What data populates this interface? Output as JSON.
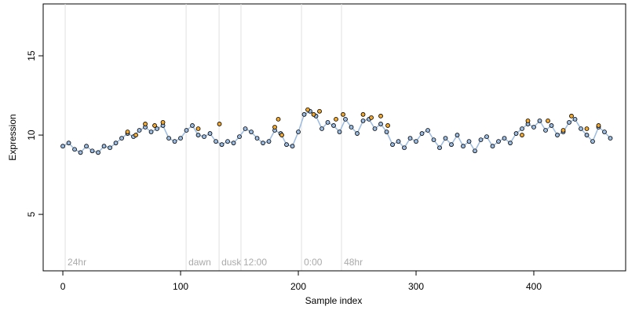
{
  "chart_data": {
    "type": "scatter",
    "xlabel": "Sample index",
    "ylabel": "Expression",
    "xlim": [
      -16.7,
      478
    ],
    "ylim": [
      1.44,
      18.27
    ],
    "xticks": [
      0,
      100,
      200,
      300,
      400
    ],
    "yticks": [
      5,
      10,
      15
    ],
    "annotations": [
      {
        "x": 2,
        "text": "24hr"
      },
      {
        "x": 104.7,
        "text": "dawn"
      },
      {
        "x": 132.7,
        "text": "dusk"
      },
      {
        "x": 151.3,
        "text": "12:00"
      },
      {
        "x": 202.7,
        "text": "0:00"
      },
      {
        "x": 236.7,
        "text": "48hr"
      }
    ],
    "series": [
      {
        "color": "#9bbbe0",
        "line": true,
        "x": [
          0,
          5,
          10,
          15,
          20,
          25,
          30,
          35,
          40,
          45,
          50,
          55,
          60,
          65,
          70,
          75,
          80,
          85,
          90,
          95,
          100,
          105,
          110,
          115,
          120,
          125,
          130,
          135,
          140,
          145,
          150,
          155,
          160,
          165,
          170,
          175,
          180,
          185,
          190,
          195,
          200,
          205,
          210,
          215,
          220,
          225,
          230,
          235,
          240,
          245,
          250,
          255,
          260,
          265,
          270,
          275,
          280,
          285,
          290,
          295,
          300,
          305,
          310,
          315,
          320,
          325,
          330,
          335,
          340,
          345,
          350,
          355,
          360,
          365,
          370,
          375,
          380,
          385,
          390,
          395,
          400,
          405,
          410,
          415,
          420,
          425,
          430,
          435,
          440,
          445,
          450,
          455,
          460,
          465
        ],
        "values": [
          9.3,
          9.5,
          9.1,
          8.9,
          9.3,
          9.0,
          8.9,
          9.3,
          9.2,
          9.5,
          9.8,
          10.1,
          9.9,
          10.3,
          10.5,
          10.2,
          10.4,
          10.6,
          9.8,
          9.6,
          9.8,
          10.3,
          10.6,
          10.0,
          9.9,
          10.1,
          9.6,
          9.4,
          9.6,
          9.5,
          9.9,
          10.4,
          10.2,
          9.8,
          9.5,
          9.6,
          10.3,
          10.1,
          9.4,
          9.3,
          10.2,
          11.3,
          11.5,
          11.2,
          10.4,
          10.8,
          10.6,
          10.2,
          11.0,
          10.5,
          10.1,
          10.9,
          11.0,
          10.4,
          10.7,
          10.2,
          9.4,
          9.6,
          9.2,
          9.8,
          9.6,
          10.1,
          10.3,
          9.7,
          9.2,
          9.8,
          9.4,
          10.0,
          9.3,
          9.6,
          9.0,
          9.7,
          9.9,
          9.3,
          9.6,
          9.8,
          9.5,
          10.1,
          10.4,
          10.7,
          10.5,
          10.9,
          10.3,
          10.6,
          10.0,
          10.2,
          10.8,
          11.0,
          10.4,
          10.0,
          9.6,
          10.5,
          10.2,
          9.8
        ]
      },
      {
        "color": "#f0a830",
        "line": false,
        "x": [
          55,
          62,
          70,
          78,
          85,
          115,
          133,
          180,
          183,
          186,
          208,
          213,
          218,
          232,
          238,
          255,
          262,
          270,
          276,
          390,
          395,
          412,
          425,
          432,
          445,
          455
        ],
        "values": [
          10.2,
          10.0,
          10.7,
          10.6,
          10.8,
          10.4,
          10.7,
          10.5,
          11.0,
          10.0,
          11.6,
          11.3,
          11.5,
          11.0,
          11.3,
          11.3,
          11.1,
          11.2,
          10.6,
          10.0,
          10.9,
          10.9,
          10.3,
          11.2,
          10.4,
          10.6
        ]
      }
    ]
  }
}
